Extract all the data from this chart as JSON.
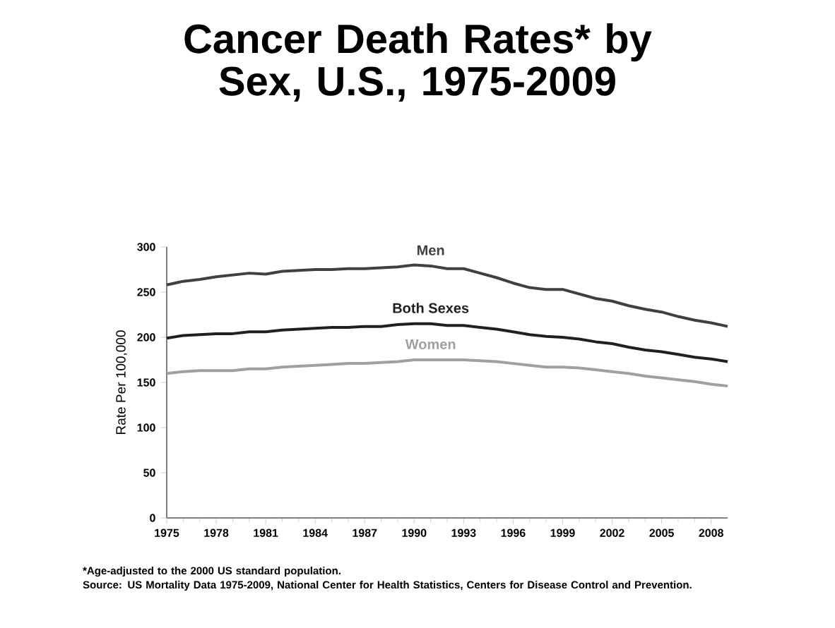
{
  "chart_data": {
    "type": "line",
    "title": "Cancer Death Rates* by Sex, U.S., 1975-2009",
    "ylabel": "Rate Per 100,000",
    "x": [
      1975,
      1976,
      1977,
      1978,
      1979,
      1980,
      1981,
      1982,
      1983,
      1984,
      1985,
      1986,
      1987,
      1988,
      1989,
      1990,
      1991,
      1992,
      1993,
      1994,
      1995,
      1996,
      1997,
      1998,
      1999,
      2000,
      2001,
      2002,
      2003,
      2004,
      2005,
      2006,
      2007,
      2008,
      2009
    ],
    "series": [
      {
        "name": "Men",
        "color": "#404040",
        "values": [
          258,
          262,
          264,
          267,
          269,
          271,
          270,
          273,
          274,
          275,
          275,
          276,
          276,
          277,
          278,
          280,
          279,
          276,
          276,
          271,
          266,
          260,
          255,
          253,
          253,
          248,
          243,
          240,
          235,
          231,
          228,
          223,
          219,
          216,
          212
        ]
      },
      {
        "name": "Both Sexes",
        "color": "#202020",
        "values": [
          199,
          202,
          203,
          204,
          204,
          206,
          206,
          208,
          209,
          210,
          211,
          211,
          212,
          212,
          214,
          215,
          215,
          213,
          213,
          211,
          209,
          206,
          203,
          201,
          200,
          198,
          195,
          193,
          189,
          186,
          184,
          181,
          178,
          176,
          173
        ]
      },
      {
        "name": "Women",
        "color": "#a0a0a0",
        "values": [
          160,
          162,
          163,
          163,
          163,
          165,
          165,
          167,
          168,
          169,
          170,
          171,
          171,
          172,
          173,
          175,
          175,
          175,
          175,
          174,
          173,
          171,
          169,
          167,
          167,
          166,
          164,
          162,
          160,
          157,
          155,
          153,
          151,
          148,
          146
        ]
      }
    ],
    "xlim": [
      1975,
      2009
    ],
    "xticks": [
      1975,
      1978,
      1981,
      1984,
      1987,
      1990,
      1993,
      1996,
      1999,
      2002,
      2005,
      2008
    ],
    "ylim": [
      0,
      300
    ],
    "yticks": [
      0,
      50,
      100,
      150,
      200,
      250,
      300
    ],
    "grid": false,
    "legend": false,
    "marker": "none",
    "line_style": "solid",
    "annotations": [
      "*Age-adjusted to the 2000 US standard population.",
      "Source: US Mortality Data 1975-2009, National Center for Health Statistics, Centers for Disease Control and Prevention."
    ]
  }
}
